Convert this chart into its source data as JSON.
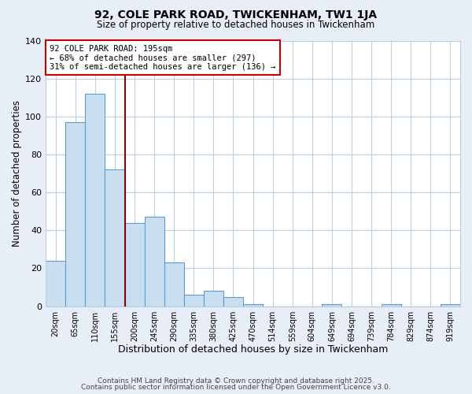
{
  "title": "92, COLE PARK ROAD, TWICKENHAM, TW1 1JA",
  "subtitle": "Size of property relative to detached houses in Twickenham",
  "xlabel": "Distribution of detached houses by size in Twickenham",
  "ylabel": "Number of detached properties",
  "bar_labels": [
    "20sqm",
    "65sqm",
    "110sqm",
    "155sqm",
    "200sqm",
    "245sqm",
    "290sqm",
    "335sqm",
    "380sqm",
    "425sqm",
    "470sqm",
    "514sqm",
    "559sqm",
    "604sqm",
    "649sqm",
    "694sqm",
    "739sqm",
    "784sqm",
    "829sqm",
    "874sqm",
    "919sqm"
  ],
  "bar_values": [
    24,
    97,
    112,
    72,
    44,
    47,
    23,
    6,
    8,
    5,
    1,
    0,
    0,
    0,
    1,
    0,
    0,
    1,
    0,
    0,
    1
  ],
  "bar_color": "#c9dff0",
  "bar_edge_color": "#5b9bd5",
  "ylim": [
    0,
    140
  ],
  "yticks": [
    0,
    20,
    40,
    60,
    80,
    100,
    120,
    140
  ],
  "property_line_color": "#8b0000",
  "annotation_title": "92 COLE PARK ROAD: 195sqm",
  "annotation_line1": "← 68% of detached houses are smaller (297)",
  "annotation_line2": "31% of semi-detached houses are larger (136) →",
  "footer_line1": "Contains HM Land Registry data © Crown copyright and database right 2025.",
  "footer_line2": "Contains public sector information licensed under the Open Government Licence v3.0.",
  "background_color": "#e8eef8",
  "plot_bg_color": "#ffffff",
  "grid_color": "#c0cfe0"
}
